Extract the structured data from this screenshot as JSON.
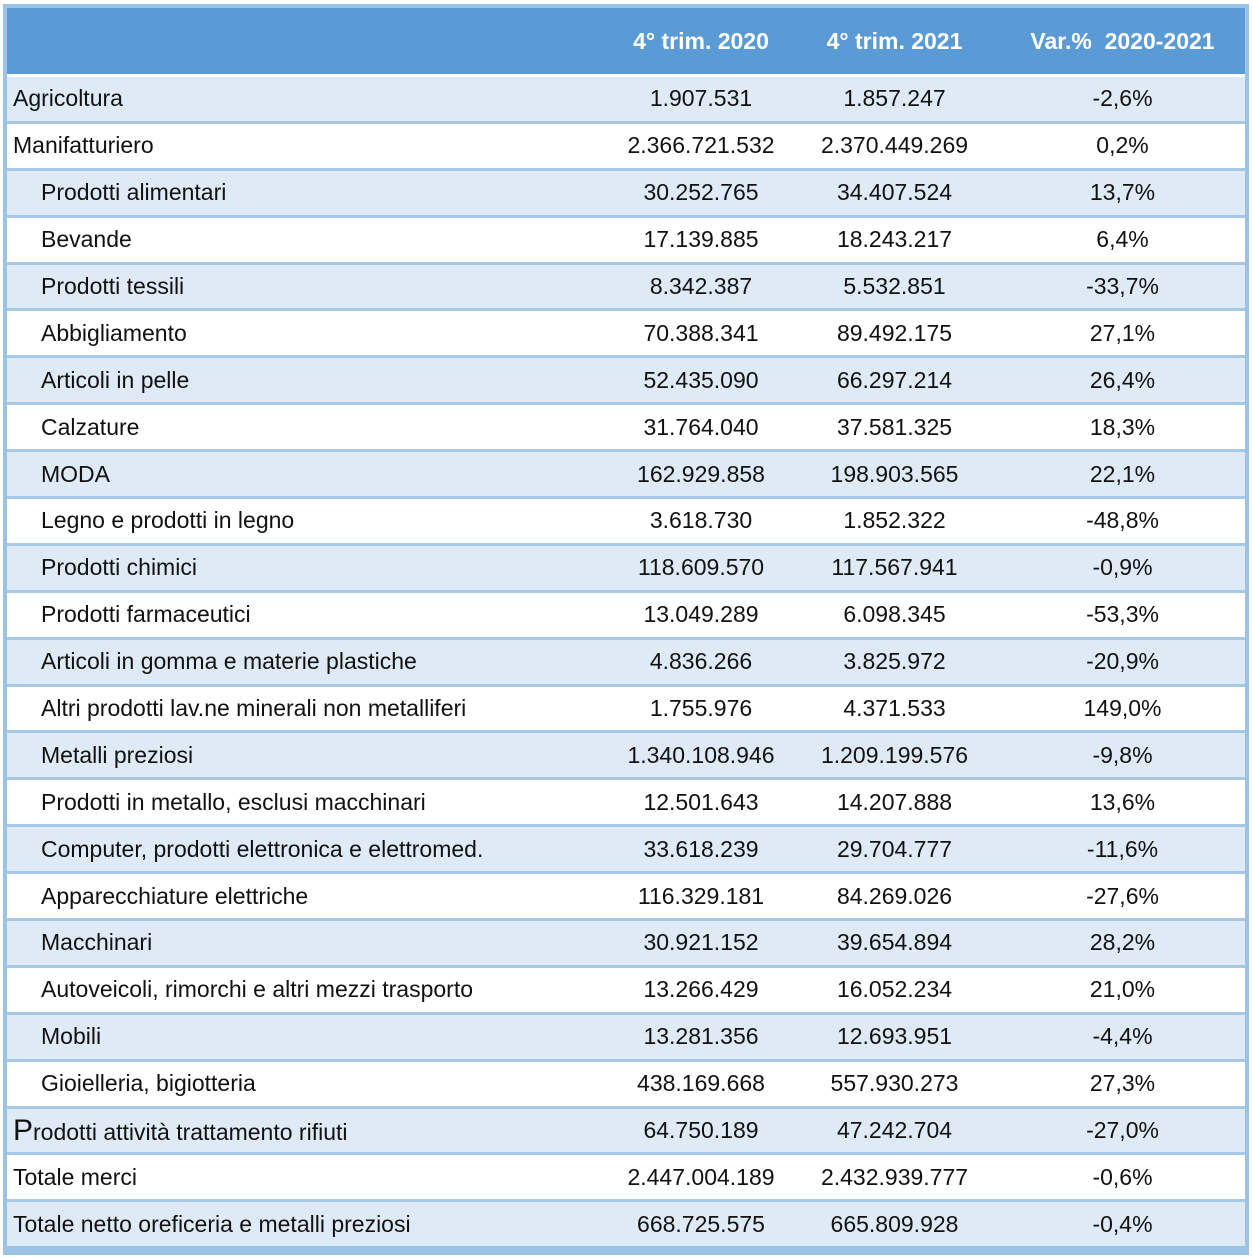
{
  "chart_data": {
    "type": "table",
    "columns": [
      "",
      "4° trim. 2020",
      "4° trim. 2021",
      "Var.%  2020-2021"
    ],
    "rows": [
      {
        "label": "Agricoltura",
        "q4_2020": "1.907.531",
        "q4_2021": "1.857.247",
        "var_pct": "-2,6%",
        "indent": false,
        "bigcap": false
      },
      {
        "label": "Manifatturiero",
        "q4_2020": "2.366.721.532",
        "q4_2021": "2.370.449.269",
        "var_pct": "0,2%",
        "indent": false,
        "bigcap": false
      },
      {
        "label": "Prodotti alimentari",
        "q4_2020": "30.252.765",
        "q4_2021": "34.407.524",
        "var_pct": "13,7%",
        "indent": true,
        "bigcap": false
      },
      {
        "label": "Bevande",
        "q4_2020": "17.139.885",
        "q4_2021": "18.243.217",
        "var_pct": "6,4%",
        "indent": true,
        "bigcap": false
      },
      {
        "label": "Prodotti tessili",
        "q4_2020": "8.342.387",
        "q4_2021": "5.532.851",
        "var_pct": "-33,7%",
        "indent": true,
        "bigcap": false
      },
      {
        "label": "Abbigliamento",
        "q4_2020": "70.388.341",
        "q4_2021": "89.492.175",
        "var_pct": "27,1%",
        "indent": true,
        "bigcap": false
      },
      {
        "label": "Articoli in pelle",
        "q4_2020": "52.435.090",
        "q4_2021": "66.297.214",
        "var_pct": "26,4%",
        "indent": true,
        "bigcap": false
      },
      {
        "label": "Calzature",
        "q4_2020": "31.764.040",
        "q4_2021": "37.581.325",
        "var_pct": "18,3%",
        "indent": true,
        "bigcap": false
      },
      {
        "label": "MODA",
        "q4_2020": "162.929.858",
        "q4_2021": "198.903.565",
        "var_pct": "22,1%",
        "indent": true,
        "bigcap": false
      },
      {
        "label": "Legno e prodotti in legno",
        "q4_2020": "3.618.730",
        "q4_2021": "1.852.322",
        "var_pct": "-48,8%",
        "indent": true,
        "bigcap": false
      },
      {
        "label": "Prodotti chimici",
        "q4_2020": "118.609.570",
        "q4_2021": "117.567.941",
        "var_pct": "-0,9%",
        "indent": true,
        "bigcap": false
      },
      {
        "label": "Prodotti farmaceutici",
        "q4_2020": "13.049.289",
        "q4_2021": "6.098.345",
        "var_pct": "-53,3%",
        "indent": true,
        "bigcap": false
      },
      {
        "label": "Articoli in gomma e materie plastiche",
        "q4_2020": "4.836.266",
        "q4_2021": "3.825.972",
        "var_pct": "-20,9%",
        "indent": true,
        "bigcap": false
      },
      {
        "label": "Altri prodotti lav.ne minerali non metalliferi",
        "q4_2020": "1.755.976",
        "q4_2021": "4.371.533",
        "var_pct": "149,0%",
        "indent": true,
        "bigcap": false
      },
      {
        "label": "Metalli preziosi",
        "q4_2020": "1.340.108.946",
        "q4_2021": "1.209.199.576",
        "var_pct": "-9,8%",
        "indent": true,
        "bigcap": false
      },
      {
        "label": "Prodotti in metallo, esclusi macchinari",
        "q4_2020": "12.501.643",
        "q4_2021": "14.207.888",
        "var_pct": "13,6%",
        "indent": true,
        "bigcap": false
      },
      {
        "label": "Computer, prodotti elettronica e elettromed.",
        "q4_2020": "33.618.239",
        "q4_2021": "29.704.777",
        "var_pct": "-11,6%",
        "indent": true,
        "bigcap": false
      },
      {
        "label": "Apparecchiature elettriche",
        "q4_2020": "116.329.181",
        "q4_2021": "84.269.026",
        "var_pct": "-27,6%",
        "indent": true,
        "bigcap": false
      },
      {
        "label": "Macchinari",
        "q4_2020": "30.921.152",
        "q4_2021": "39.654.894",
        "var_pct": "28,2%",
        "indent": true,
        "bigcap": false
      },
      {
        "label": "Autoveicoli, rimorchi e altri mezzi trasporto",
        "q4_2020": "13.266.429",
        "q4_2021": "16.052.234",
        "var_pct": "21,0%",
        "indent": true,
        "bigcap": false
      },
      {
        "label": "Mobili",
        "q4_2020": "13.281.356",
        "q4_2021": "12.693.951",
        "var_pct": "-4,4%",
        "indent": true,
        "bigcap": false
      },
      {
        "label": "Gioielleria, bigiotteria",
        "q4_2020": "438.169.668",
        "q4_2021": "557.930.273",
        "var_pct": "27,3%",
        "indent": true,
        "bigcap": false
      },
      {
        "label": "Prodotti attività trattamento rifiuti",
        "q4_2020": "64.750.189",
        "q4_2021": "47.242.704",
        "var_pct": "-27,0%",
        "indent": false,
        "bigcap": true
      },
      {
        "label": "Totale merci",
        "q4_2020": "2.447.004.189",
        "q4_2021": "2.432.939.777",
        "var_pct": "-0,6%",
        "indent": false,
        "bigcap": false
      },
      {
        "label": "Totale netto oreficeria e metalli preziosi",
        "q4_2020": "668.725.575",
        "q4_2021": "665.809.928",
        "var_pct": "-0,4%",
        "indent": false,
        "bigcap": false
      }
    ]
  },
  "colors": {
    "header_bg": "#5B9BD5",
    "header_text": "#FFFFFF",
    "row_alt_bg": "#DEEAF6",
    "row_bg": "#FFFFFF",
    "grid_line": "#A6C9E8",
    "outer_border": "#9CC2E6",
    "text": "#111111"
  }
}
